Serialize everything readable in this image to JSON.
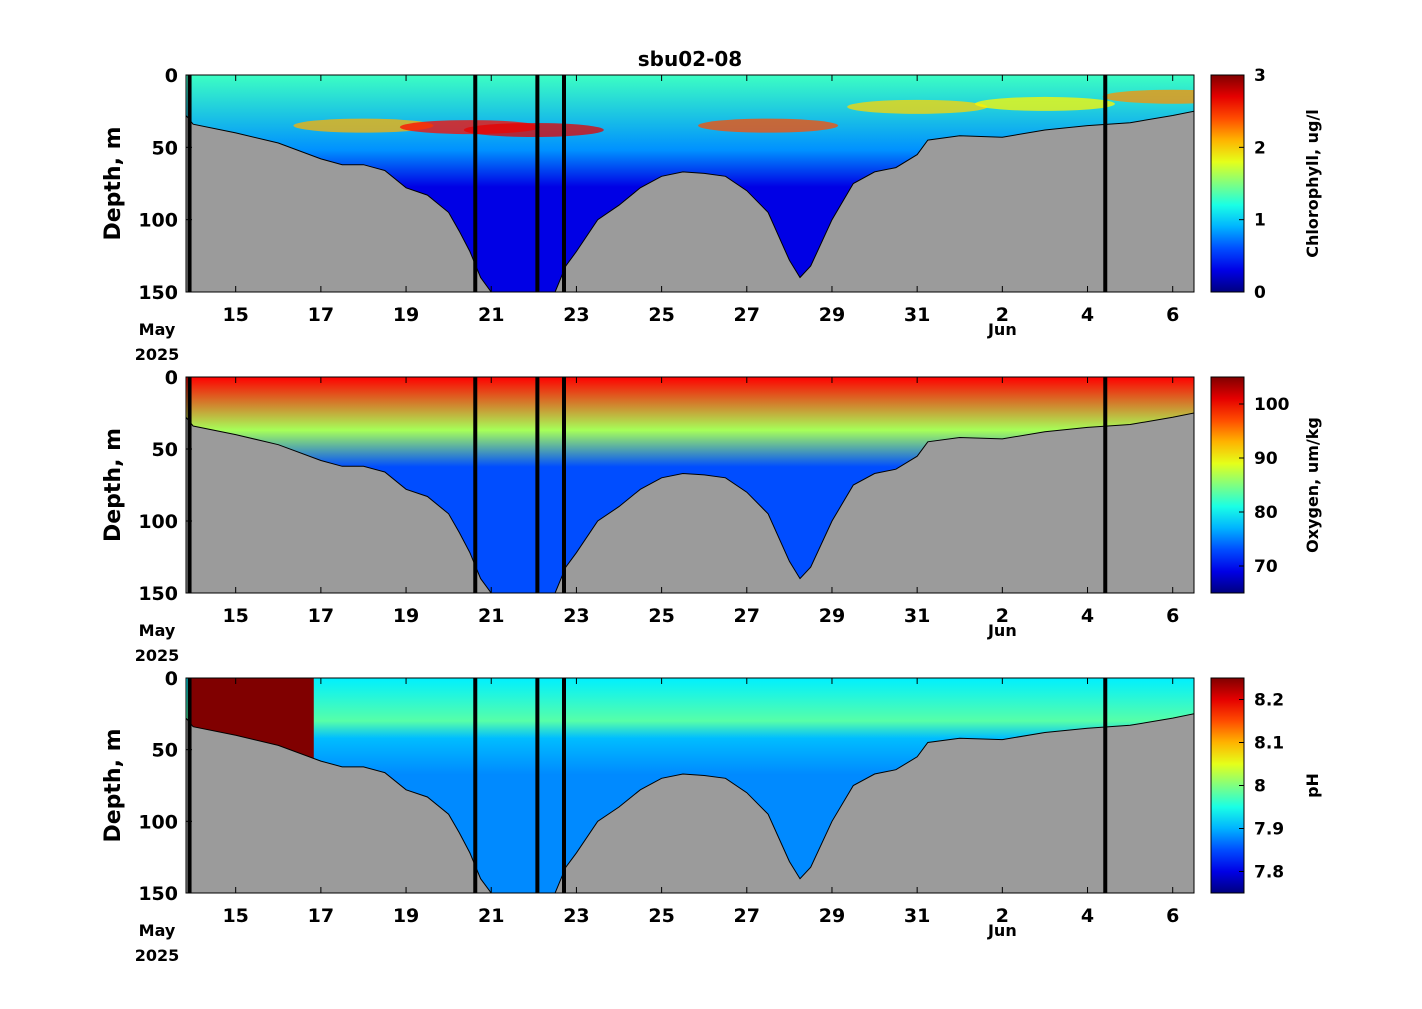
{
  "title": "sbu02-08",
  "x_tick_labels": [
    "15",
    "17",
    "19",
    "21",
    "23",
    "25",
    "27",
    "29",
    "31",
    "2",
    "4",
    "6"
  ],
  "x_month_labels": {
    "may": "May",
    "year": "2025",
    "jun": "Jun"
  },
  "colors": {
    "seabed": "#9b9b9b",
    "deployment_line": "#000000",
    "background": "#ffffff"
  },
  "chart_data": [
    {
      "type": "heatmap",
      "title": "sbu02-08",
      "variable": "chlorophyll",
      "ylabel": "Depth, m",
      "colorbar_label": "Chlorophyll, ug/l",
      "colormap": "jet",
      "x_range": [
        "2025-05-13T20:00",
        "2025-06-06T12:00"
      ],
      "ylim": [
        150,
        0
      ],
      "y_ticks": [
        "0",
        "50",
        "100",
        "150"
      ],
      "clim": [
        0,
        3
      ],
      "colorbar_ticks": [
        "0",
        "1",
        "2",
        "3"
      ],
      "surface_max_depth_m": 40,
      "surface_value": 1.3,
      "deep_value": 0.3,
      "patches": [
        {
          "time": "2025-05-18T00:00",
          "depth_m": 35,
          "value": 2.1
        },
        {
          "time": "2025-05-20T12:00",
          "depth_m": 36,
          "value": 2.6
        },
        {
          "time": "2025-05-22T00:00",
          "depth_m": 38,
          "value": 2.7
        },
        {
          "time": "2025-05-27T12:00",
          "depth_m": 35,
          "value": 2.4
        },
        {
          "time": "2025-05-31T00:00",
          "depth_m": 22,
          "value": 2.0
        },
        {
          "time": "2025-06-03T00:00",
          "depth_m": 20,
          "value": 1.9
        },
        {
          "time": "2025-06-06T00:00",
          "depth_m": 15,
          "value": 2.2
        }
      ],
      "grid": false
    },
    {
      "type": "heatmap",
      "variable": "oxygen",
      "ylabel": "Depth, m",
      "colorbar_label": "Oxygen, um/kg",
      "colormap": "jet",
      "x_range": [
        "2025-05-13T20:00",
        "2025-06-06T12:00"
      ],
      "ylim": [
        150,
        0
      ],
      "y_ticks": [
        "0",
        "50",
        "100",
        "150"
      ],
      "clim": [
        65,
        105
      ],
      "colorbar_ticks": [
        "70",
        "80",
        "90",
        "100"
      ],
      "surface_max_depth_m": 25,
      "surface_value": 100,
      "deep_value": 73,
      "grid": false
    },
    {
      "type": "heatmap",
      "variable": "pH",
      "ylabel": "Depth, m",
      "colorbar_label": "pH",
      "colormap": "jet",
      "x_range": [
        "2025-05-13T20:00",
        "2025-06-06T12:00"
      ],
      "ylim": [
        150,
        0
      ],
      "y_ticks": [
        "0",
        "50",
        "100",
        "150"
      ],
      "clim": [
        7.75,
        8.25
      ],
      "colorbar_ticks": [
        "7.8",
        "7.9",
        "8",
        "8.1",
        "8.2"
      ],
      "surface_max_depth_m": 30,
      "surface_value": 7.93,
      "mid_value": 7.98,
      "deep_value": 7.88,
      "saturated_block": {
        "start": "2025-05-13T22:00",
        "end": "2025-05-16T20:00",
        "value": 8.25
      },
      "grid": false
    }
  ],
  "bathymetry": {
    "description_units": "seabed depth (m) vs time",
    "points": [
      [
        "2025-05-13T20:00",
        28
      ],
      [
        "2025-05-14T00:00",
        34
      ],
      [
        "2025-05-15T00:00",
        40
      ],
      [
        "2025-05-16T00:00",
        47
      ],
      [
        "2025-05-17T00:00",
        58
      ],
      [
        "2025-05-17T12:00",
        62
      ],
      [
        "2025-05-18T00:00",
        62
      ],
      [
        "2025-05-18T12:00",
        66
      ],
      [
        "2025-05-19T00:00",
        78
      ],
      [
        "2025-05-19T12:00",
        83
      ],
      [
        "2025-05-20T00:00",
        95
      ],
      [
        "2025-05-20T06:00",
        108
      ],
      [
        "2025-05-20T12:00",
        122
      ],
      [
        "2025-05-20T18:00",
        140
      ],
      [
        "2025-05-21T00:00",
        150
      ],
      [
        "2025-05-22T12:00",
        150
      ],
      [
        "2025-05-22T18:00",
        132
      ],
      [
        "2025-05-23T00:00",
        122
      ],
      [
        "2025-05-23T12:00",
        100
      ],
      [
        "2025-05-24T00:00",
        90
      ],
      [
        "2025-05-24T12:00",
        78
      ],
      [
        "2025-05-25T00:00",
        70
      ],
      [
        "2025-05-25T12:00",
        67
      ],
      [
        "2025-05-26T00:00",
        68
      ],
      [
        "2025-05-26T12:00",
        70
      ],
      [
        "2025-05-27T00:00",
        80
      ],
      [
        "2025-05-27T12:00",
        95
      ],
      [
        "2025-05-28T00:00",
        128
      ],
      [
        "2025-05-28T06:00",
        140
      ],
      [
        "2025-05-28T12:00",
        132
      ],
      [
        "2025-05-29T00:00",
        100
      ],
      [
        "2025-05-29T12:00",
        75
      ],
      [
        "2025-05-30T00:00",
        67
      ],
      [
        "2025-05-30T12:00",
        64
      ],
      [
        "2025-05-31T00:00",
        55
      ],
      [
        "2025-05-31T06:00",
        45
      ],
      [
        "2025-06-01T00:00",
        42
      ],
      [
        "2025-06-02T00:00",
        43
      ],
      [
        "2025-06-03T00:00",
        38
      ],
      [
        "2025-06-04T00:00",
        35
      ],
      [
        "2025-06-05T00:00",
        33
      ],
      [
        "2025-06-06T00:00",
        28
      ],
      [
        "2025-06-06T12:00",
        25
      ]
    ]
  },
  "deployment_lines": [
    "2025-05-13T22:00",
    "2025-05-20T15:00",
    "2025-05-22T02:00",
    "2025-05-22T17:00",
    "2025-06-04T10:00"
  ]
}
